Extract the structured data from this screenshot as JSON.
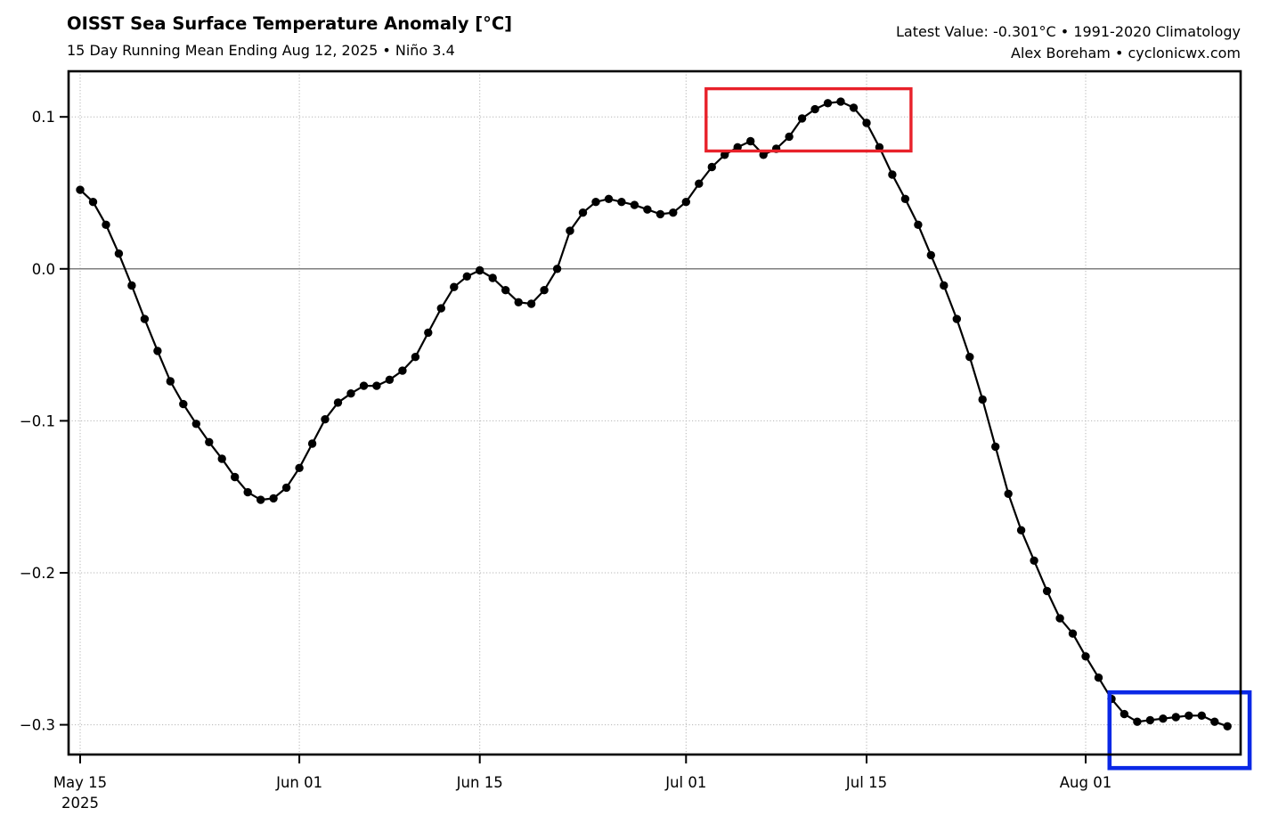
{
  "chart_data": {
    "type": "line",
    "title": "OISST Sea Surface Temperature Anomaly [°C]",
    "subtitle": "15 Day Running Mean Ending Aug 12, 2025 • Niño 3.4",
    "latest_value_text": "Latest Value: -0.301°C • 1991-2020 Climatology",
    "credit_text": "Alex Boreham • cyclonicwx.com",
    "xlabel": "",
    "ylabel": "",
    "grid": true,
    "legend": false,
    "line_color": "#000000",
    "zero_line": true,
    "zero_line_color": "#7f7f7f",
    "xlim_days": [
      -0.9,
      90.02
    ],
    "ylim": [
      -0.3196,
      0.13
    ],
    "y_ticks": [
      0.1,
      0.0,
      -0.1,
      -0.2,
      -0.3
    ],
    "y_tick_labels": [
      "0.1",
      "0.0",
      "−0.1",
      "−0.2",
      "−0.3"
    ],
    "x_ticks": [
      {
        "day": 0,
        "label": "May 15",
        "sublabel": "2025"
      },
      {
        "day": 17,
        "label": "Jun 01"
      },
      {
        "day": 31,
        "label": "Jun 15"
      },
      {
        "day": 47,
        "label": "Jul 01"
      },
      {
        "day": 61,
        "label": "Jul 15"
      },
      {
        "day": 78,
        "label": "Aug 01"
      }
    ],
    "series": [
      {
        "name": "Niño 3.4 SST anomaly (15-day running mean)",
        "dates": [
          "May 15",
          "May 16",
          "May 17",
          "May 18",
          "May 19",
          "May 20",
          "May 21",
          "May 22",
          "May 23",
          "May 24",
          "May 25",
          "May 26",
          "May 27",
          "May 28",
          "May 29",
          "May 30",
          "May 31",
          "Jun 01",
          "Jun 02",
          "Jun 03",
          "Jun 04",
          "Jun 05",
          "Jun 06",
          "Jun 07",
          "Jun 08",
          "Jun 09",
          "Jun 10",
          "Jun 11",
          "Jun 12",
          "Jun 13",
          "Jun 14",
          "Jun 15",
          "Jun 16",
          "Jun 17",
          "Jun 18",
          "Jun 19",
          "Jun 20",
          "Jun 21",
          "Jun 22",
          "Jun 23",
          "Jun 24",
          "Jun 25",
          "Jun 26",
          "Jun 27",
          "Jun 28",
          "Jun 29",
          "Jun 30",
          "Jul 01",
          "Jul 02",
          "Jul 03",
          "Jul 04",
          "Jul 05",
          "Jul 06",
          "Jul 07",
          "Jul 08",
          "Jul 09",
          "Jul 10",
          "Jul 11",
          "Jul 12",
          "Jul 13",
          "Jul 14",
          "Jul 15",
          "Jul 16",
          "Jul 17",
          "Jul 18",
          "Jul 19",
          "Jul 20",
          "Jul 21",
          "Jul 22",
          "Jul 23",
          "Jul 24",
          "Jul 25",
          "Jul 26",
          "Jul 27",
          "Jul 28",
          "Jul 29",
          "Jul 30",
          "Jul 31",
          "Aug 01",
          "Aug 02",
          "Aug 03",
          "Aug 04",
          "Aug 05",
          "Aug 06",
          "Aug 07",
          "Aug 08",
          "Aug 09",
          "Aug 10",
          "Aug 11",
          "Aug 12"
        ],
        "values": [
          0.052,
          0.044,
          0.029,
          0.01,
          -0.011,
          -0.033,
          -0.054,
          -0.074,
          -0.089,
          -0.102,
          -0.114,
          -0.125,
          -0.137,
          -0.147,
          -0.152,
          -0.151,
          -0.144,
          -0.131,
          -0.115,
          -0.099,
          -0.088,
          -0.082,
          -0.077,
          -0.077,
          -0.073,
          -0.067,
          -0.058,
          -0.042,
          -0.026,
          -0.012,
          -0.005,
          -0.001,
          -0.006,
          -0.014,
          -0.022,
          -0.023,
          -0.014,
          0.0,
          0.025,
          0.037,
          0.044,
          0.046,
          0.044,
          0.042,
          0.039,
          0.036,
          0.037,
          0.044,
          0.056,
          0.067,
          0.075,
          0.08,
          0.084,
          0.075,
          0.079,
          0.087,
          0.099,
          0.105,
          0.109,
          0.11,
          0.106,
          0.096,
          0.08,
          0.062,
          0.046,
          0.029,
          0.009,
          -0.011,
          -0.033,
          -0.058,
          -0.086,
          -0.117,
          -0.148,
          -0.172,
          -0.192,
          -0.212,
          -0.23,
          -0.24,
          -0.255,
          -0.269,
          -0.283,
          -0.293,
          -0.298,
          -0.297,
          -0.296,
          -0.295,
          -0.294,
          -0.294,
          -0.298,
          -0.301
        ]
      }
    ],
    "highlight_boxes": [
      {
        "name": "red-highlight-box",
        "color": "#e8212a",
        "stroke_width": 3.4,
        "x0_day": 48.55,
        "x1_day": 64.45,
        "y0": 0.0775,
        "y1": 0.1185
      },
      {
        "name": "blue-highlight-box",
        "color": "#0a28e6",
        "stroke_width": 4.6,
        "x0_day": 79.85,
        "x1_day": 90.72,
        "y0": -0.2787,
        "y1": -0.3285
      }
    ]
  }
}
